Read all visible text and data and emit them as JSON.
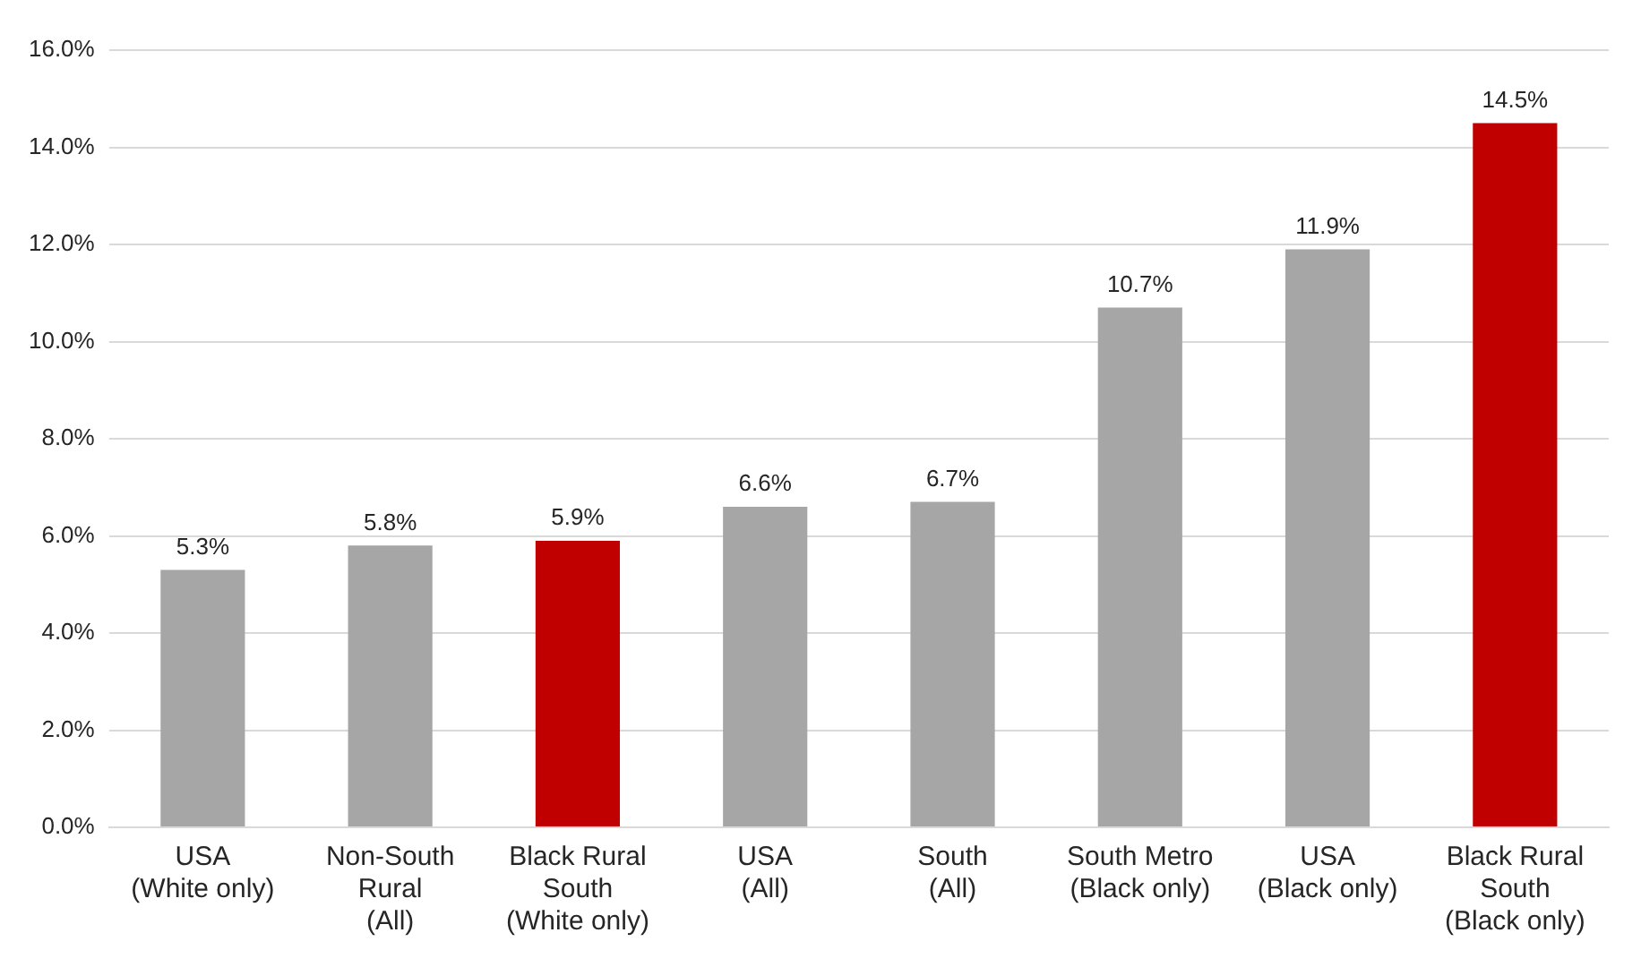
{
  "chart_data": {
    "type": "bar",
    "categories": [
      "USA\n(White only)",
      "Non-South\nRural\n(All)",
      "Black Rural\nSouth\n(White only)",
      "USA\n(All)",
      "South\n(All)",
      "South Metro\n(Black only)",
      "USA\n(Black only)",
      "Black Rural\nSouth\n(Black only)"
    ],
    "values": [
      5.3,
      5.8,
      5.9,
      6.6,
      6.7,
      10.7,
      11.9,
      14.5
    ],
    "colors": [
      "#a6a6a6",
      "#a6a6a6",
      "#c00000",
      "#a6a6a6",
      "#a6a6a6",
      "#a6a6a6",
      "#a6a6a6",
      "#c00000"
    ],
    "value_labels": [
      "5.3%",
      "5.8%",
      "5.9%",
      "6.6%",
      "6.7%",
      "10.7%",
      "11.9%",
      "14.5%"
    ],
    "ylim": [
      0,
      16
    ],
    "yticks": [
      {
        "value": 0,
        "label": "0.0%"
      },
      {
        "value": 2,
        "label": "2.0%"
      },
      {
        "value": 4,
        "label": "4.0%"
      },
      {
        "value": 6,
        "label": "6.0%"
      },
      {
        "value": 8,
        "label": "8.0%"
      },
      {
        "value": 10,
        "label": "10.0%"
      },
      {
        "value": 12,
        "label": "12.0%"
      },
      {
        "value": 14,
        "label": "14.0%"
      },
      {
        "value": 16,
        "label": "16.0%"
      }
    ],
    "grid": "y",
    "legend": false
  }
}
